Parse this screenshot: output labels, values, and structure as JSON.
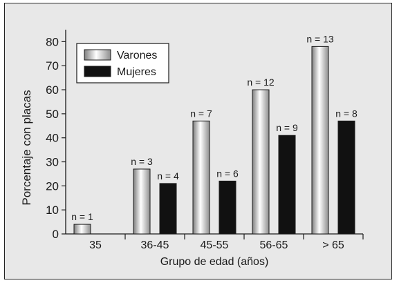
{
  "chart_data": {
    "type": "bar",
    "ylabel": "Porcentaje con placas",
    "xlabel": "Grupo de edad (años)",
    "ylim": [
      0,
      85
    ],
    "yticks": [
      0,
      10,
      20,
      30,
      40,
      50,
      60,
      70,
      80
    ],
    "categories": [
      "35",
      "36-45",
      "45-55",
      "56-65",
      "> 65"
    ],
    "series": [
      {
        "name": "Varones",
        "style": "gradient-gray",
        "values": [
          4,
          27,
          47,
          60,
          78
        ],
        "labels": [
          "n = 1",
          "n = 3",
          "n = 7",
          "n = 12",
          "n = 13"
        ]
      },
      {
        "name": "Mujeres",
        "style": "black",
        "values": [
          null,
          21,
          22,
          41,
          47
        ],
        "labels": [
          null,
          "n = 4",
          "n = 6",
          "n = 9",
          "n = 8"
        ]
      }
    ],
    "legend_position": "top-left",
    "grid": false
  },
  "colors": {
    "background": "#e8e8e8",
    "axis": "#1a1a1a",
    "mujeres_fill": "#111111",
    "varones_light": "#ffffff",
    "varones_dark": "#9a9a9a"
  }
}
